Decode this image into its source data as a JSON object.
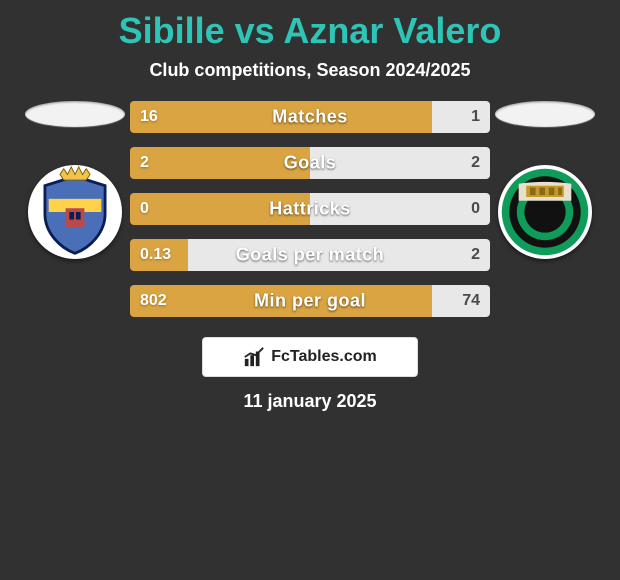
{
  "header": {
    "title": "Sibille vs Aznar Valero",
    "subtitle": "Club competitions, Season 2024/2025"
  },
  "bars": [
    {
      "label": "Matches",
      "left": "16",
      "right": "1",
      "weights": [
        16,
        1
      ]
    },
    {
      "label": "Goals",
      "left": "2",
      "right": "2",
      "weights": [
        2,
        2
      ]
    },
    {
      "label": "Hattricks",
      "left": "0",
      "right": "0",
      "weights": [
        1,
        1
      ]
    },
    {
      "label": "Goals per match",
      "left": "0.13",
      "right": "2",
      "weights": [
        0.13,
        2
      ]
    },
    {
      "label": "Min per goal",
      "left": "802",
      "right": "74",
      "weights": [
        802,
        74
      ]
    }
  ],
  "badges": {
    "left": {
      "shield_fill": "#4a6fb8",
      "shield_stroke": "#0a1e55",
      "band_fill": "#ffd24a",
      "detail_fill": "#b84a4a",
      "crown_fill": "#f2c24a",
      "crown_stroke": "#7a5a00"
    },
    "right": {
      "rings": [
        "#0f9b5a",
        "#111"
      ],
      "backdrop": "#e8e0cc",
      "monument": "#c49a2a"
    }
  },
  "brand": {
    "label": "FcTables.com"
  },
  "date": "11 january 2025",
  "colors": {
    "accent": "#2ec4b6",
    "bar_left": "#d9a441",
    "bar_right": "#e8e8e8",
    "bg": "#313131"
  }
}
